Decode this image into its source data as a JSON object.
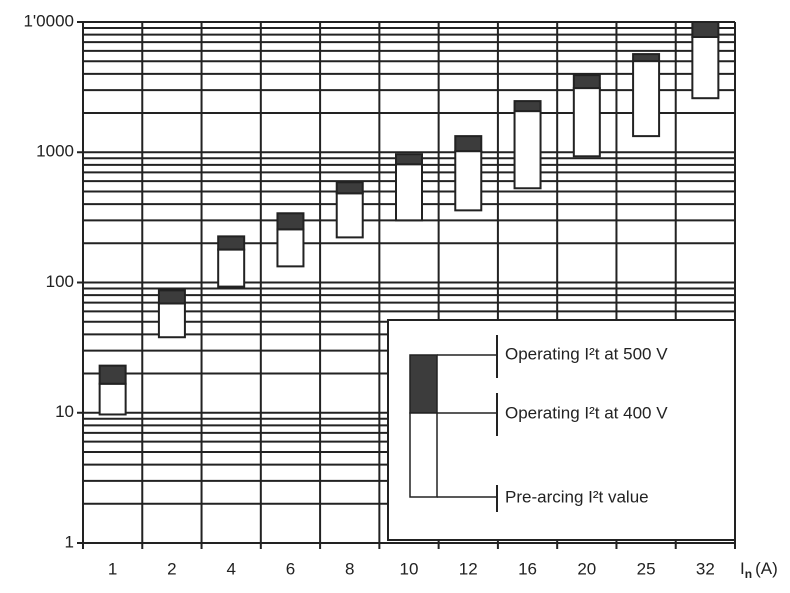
{
  "chart_data": {
    "type": "floating-bar",
    "categories": [
      "1",
      "2",
      "4",
      "6",
      "8",
      "10",
      "12",
      "16",
      "20",
      "25",
      "32"
    ],
    "series": [
      {
        "name": "Pre-arcing I²t value",
        "color": "#ffffff",
        "values": [
          9.7,
          38,
          93,
          133,
          222,
          300,
          358,
          529,
          931,
          1330,
          2600
        ]
      },
      {
        "name": "Operating I²t at 400 V",
        "color": "#ffffff",
        "values": [
          16.7,
          69,
          179,
          256,
          484,
          809,
          1020,
          2070,
          3110,
          5010,
          7670
        ]
      },
      {
        "name": "Operating I²t at 500 V",
        "color": "#3c3c3c",
        "values": [
          23,
          87,
          226,
          340,
          588,
          966,
          1330,
          2470,
          3910,
          5670,
          10000
        ]
      }
    ],
    "xlabel": {
      "main": "I",
      "sub": "n",
      "unit": "(A)"
    },
    "ylim": [
      1,
      10000
    ],
    "log_y": true,
    "yticks": [
      1,
      10,
      100,
      1000,
      {
        "value": 10000,
        "label": "1'0000"
      }
    ],
    "yminor": [
      2,
      3,
      4,
      5,
      6,
      7,
      8,
      9,
      20,
      30,
      40,
      50,
      60,
      70,
      80,
      90,
      200,
      300,
      400,
      500,
      600,
      700,
      800,
      900,
      2000,
      3000,
      4000,
      5000,
      6000,
      7000,
      8000,
      9000
    ],
    "grid": true,
    "legend": "lower right"
  }
}
